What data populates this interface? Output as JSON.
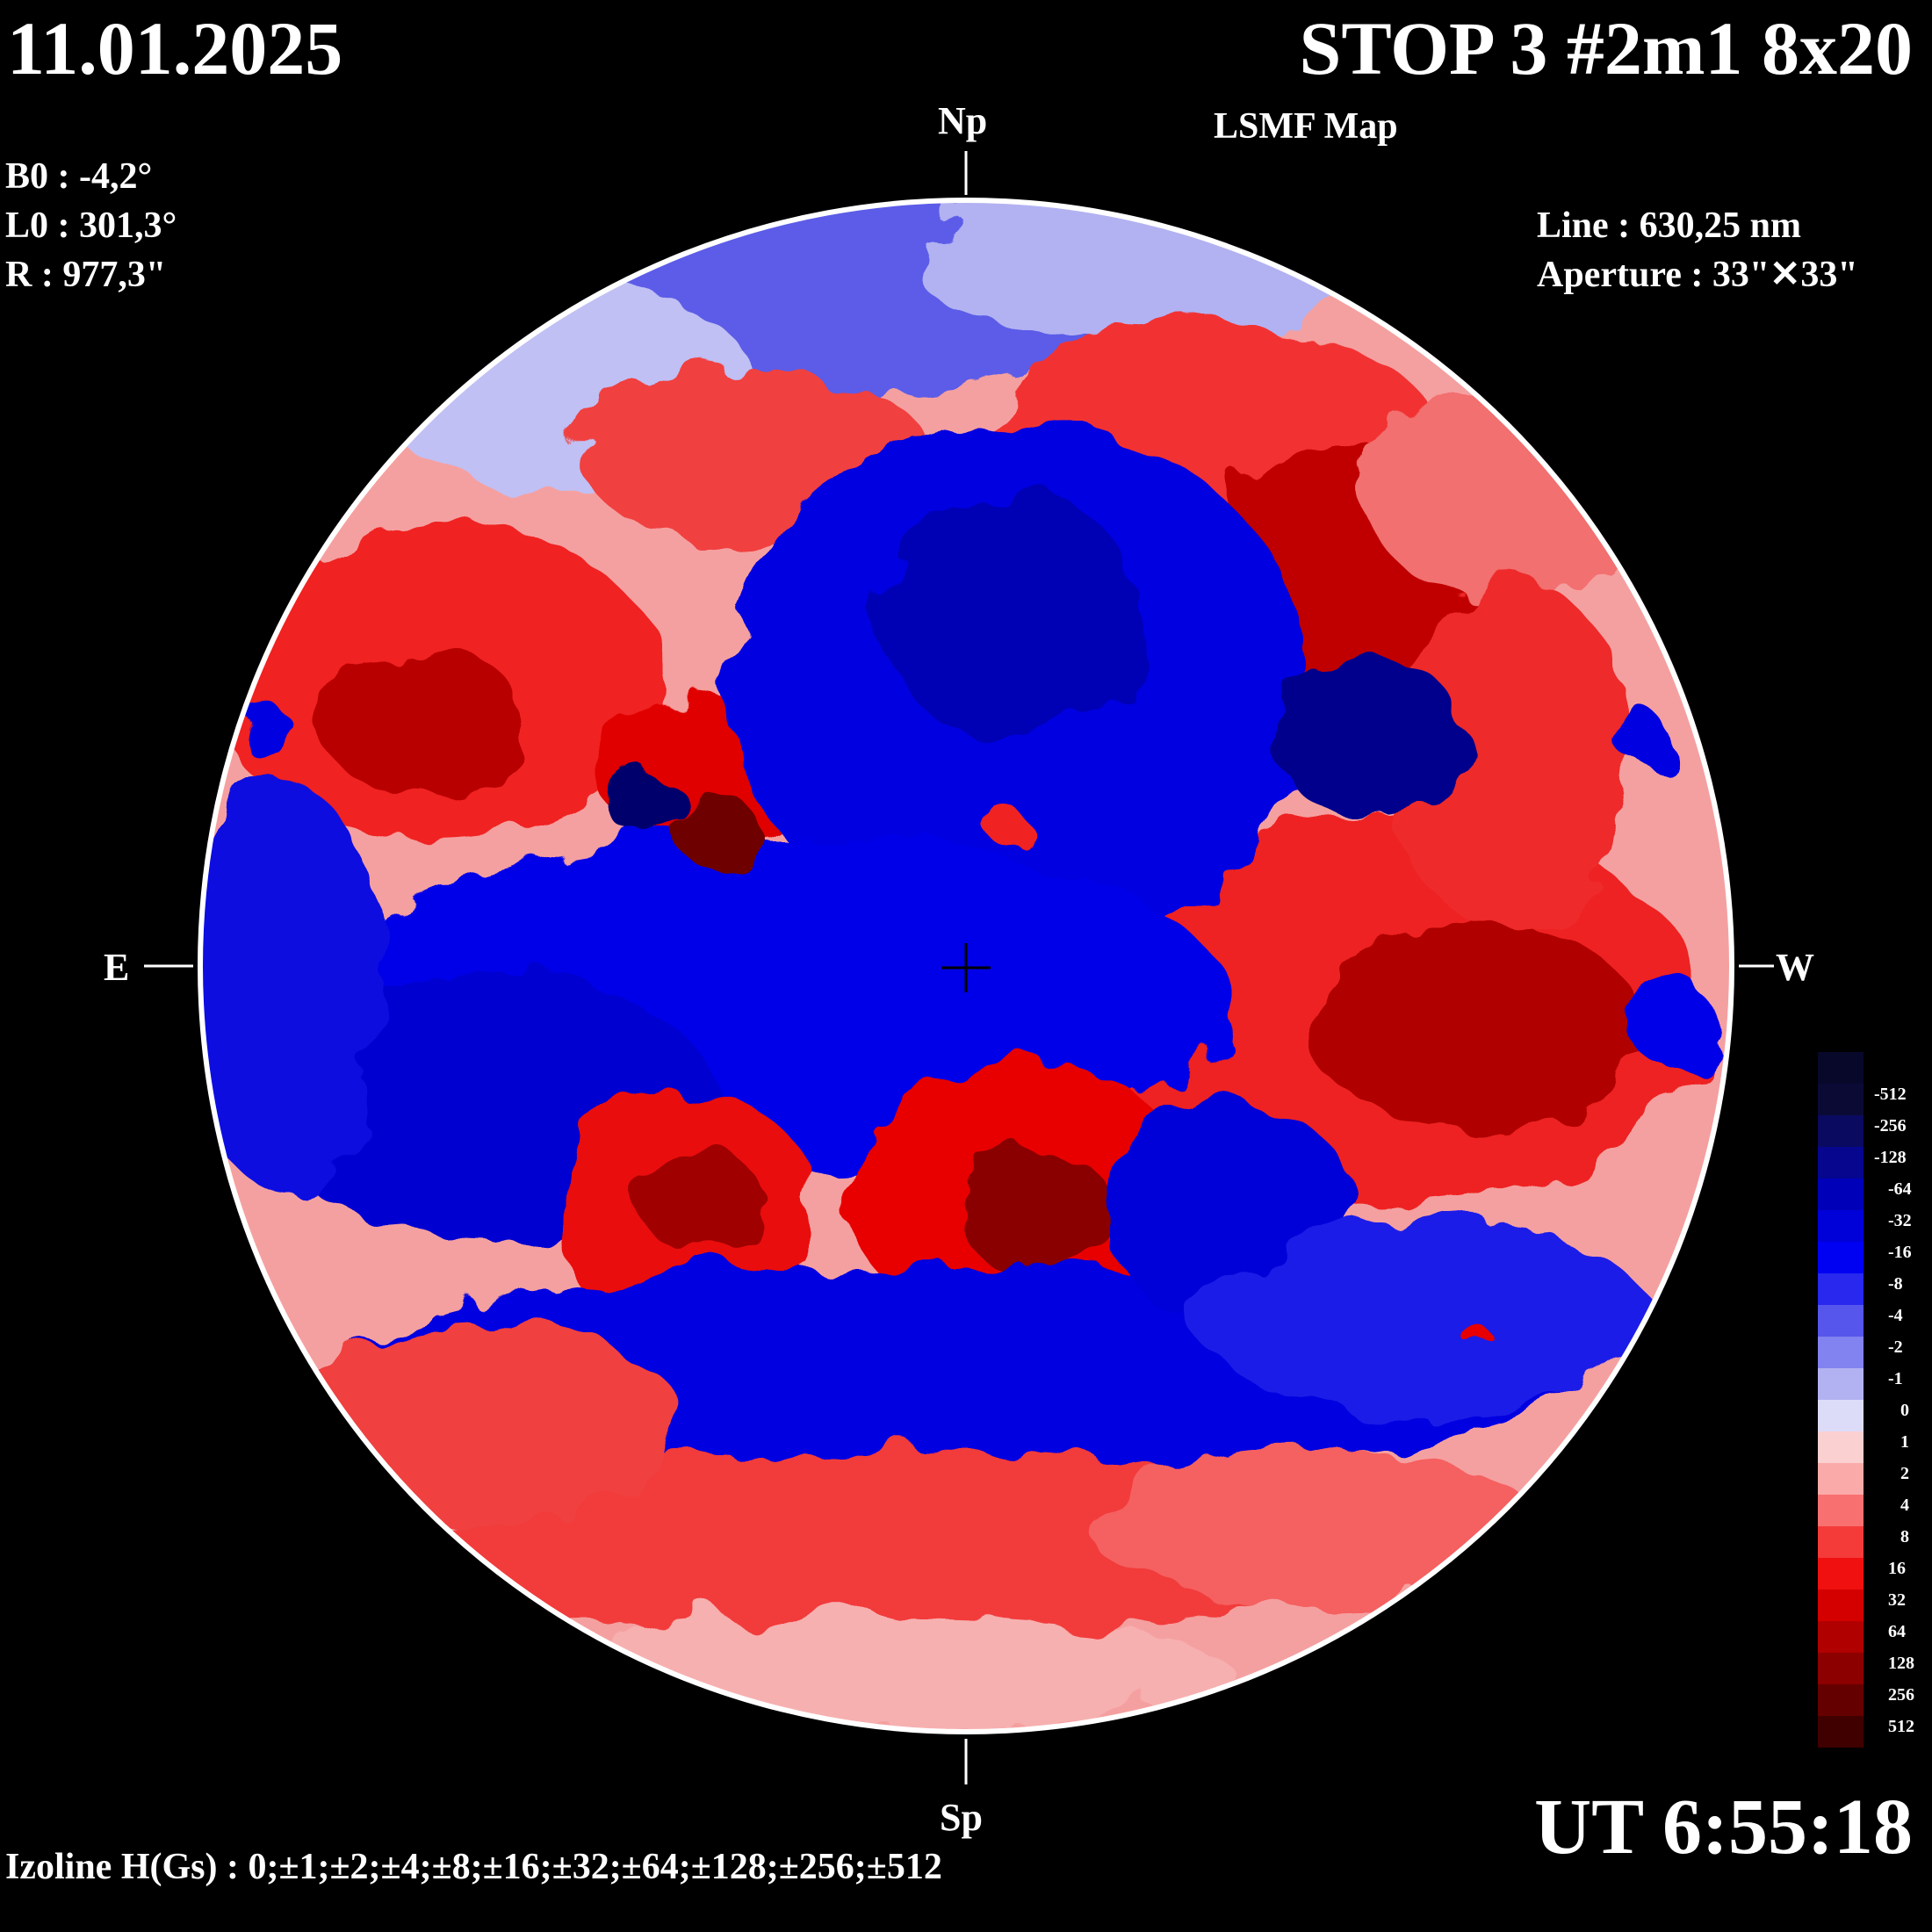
{
  "header": {
    "date": "11.01.2025",
    "title": "STOP 3 #2m1 8x20",
    "subtitle": "LSMF  Map"
  },
  "params": {
    "b0": "B0 : -4,2°",
    "l0": "L0 : 301,3°",
    "r": "R  : 977,3\"",
    "line": "Line :  630,25 nm",
    "aperture": "Aperture : 33\"✕33\""
  },
  "directions": {
    "north": "Np",
    "south": "Sp",
    "east": "E",
    "west": "W"
  },
  "time": "UT 6:55:18",
  "izoline": "Izoline H(Gs) : 0;±1;±2;±4;±8;±16;±32;±64;±128;±256;±512",
  "colorbar": {
    "levels": [
      "-512",
      "-256",
      "-128",
      "-64",
      "-32",
      "-16",
      "-8",
      "-4",
      "-2",
      "-1",
      "0",
      "1",
      "2",
      "4",
      "8",
      "16",
      "32",
      "64",
      "128",
      "256",
      "512"
    ],
    "colors": [
      "#0a0a35",
      "#0a0a60",
      "#06068f",
      "#0000b8",
      "#0000d8",
      "#0000f2",
      "#2828ee",
      "#5656ec",
      "#8282f0",
      "#b2b2f2",
      "#dcdcf8",
      "#fbd0d0",
      "#fbaaaa",
      "#f87070",
      "#f53a3a",
      "#f01010",
      "#d40000",
      "#b00000",
      "#8c0000",
      "#650000",
      "#400000"
    ]
  }
}
